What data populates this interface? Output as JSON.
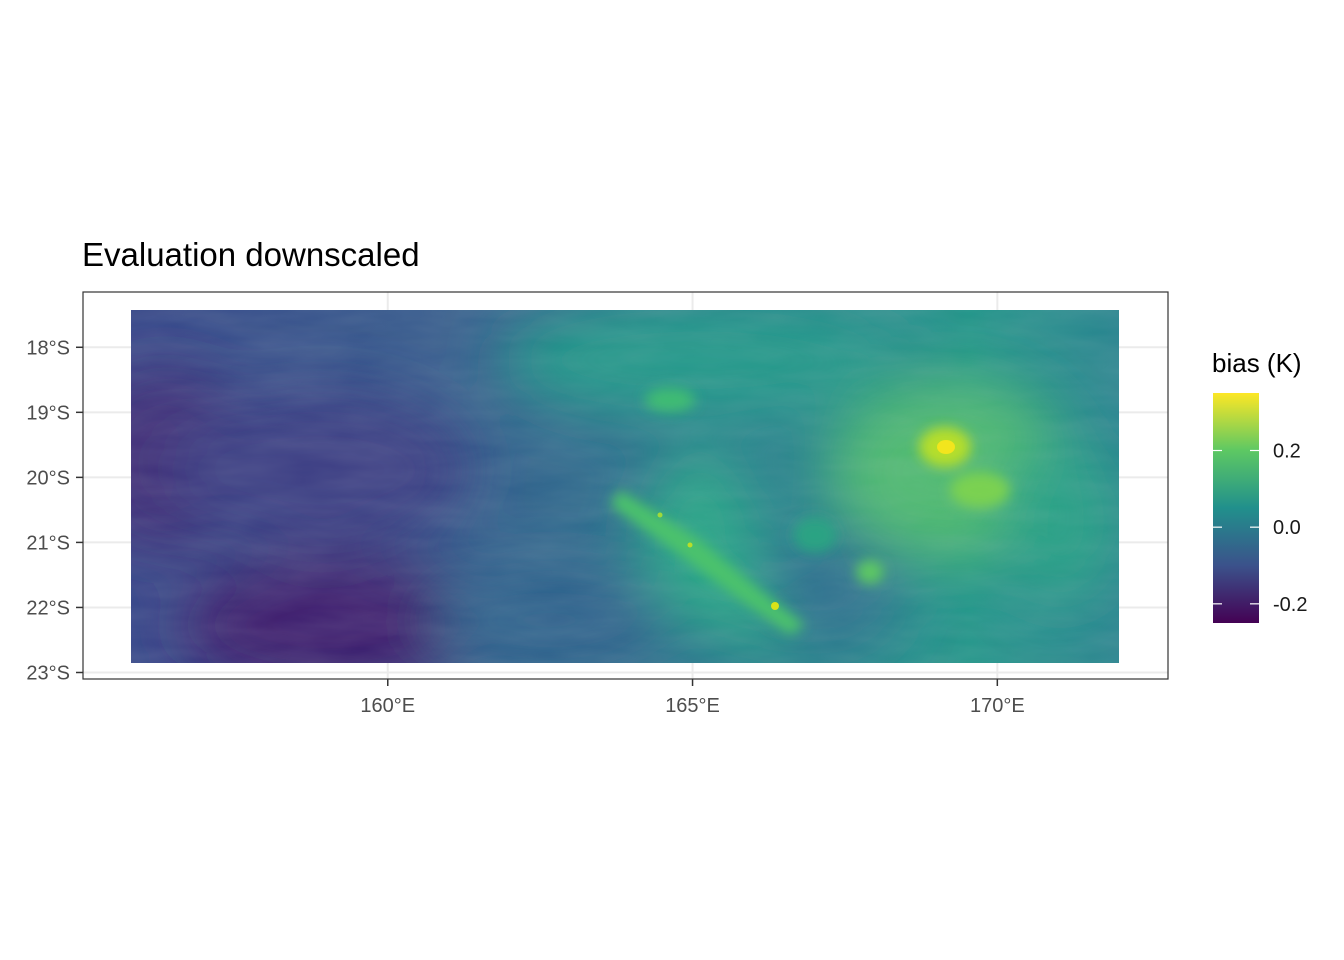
{
  "title": "Evaluation downscaled",
  "legend": {
    "title": "bias (K)",
    "ticks": [
      {
        "value": 0.2,
        "label": "0.2"
      },
      {
        "value": 0.0,
        "label": "0.0"
      },
      {
        "value": -0.2,
        "label": "-0.2"
      }
    ],
    "range": [
      -0.25,
      0.35
    ],
    "palette": [
      "#440154",
      "#3b528b",
      "#21908c",
      "#5dc863",
      "#fde725"
    ]
  },
  "axes": {
    "x_ticks": [
      {
        "value": 160,
        "label": "160°E"
      },
      {
        "value": 165,
        "label": "165°E"
      },
      {
        "value": 170,
        "label": "170°E"
      }
    ],
    "y_ticks": [
      {
        "value": -18,
        "label": "18°S"
      },
      {
        "value": -19,
        "label": "19°S"
      },
      {
        "value": -20,
        "label": "20°S"
      },
      {
        "value": -21,
        "label": "21°S"
      },
      {
        "value": -22,
        "label": "22°S"
      },
      {
        "value": -23,
        "label": "23°S"
      }
    ],
    "x_range": [
      155,
      172.8
    ],
    "y_range": [
      -23.1,
      -17.15
    ],
    "grid": true
  },
  "chart_data": {
    "type": "heatmap",
    "title": "Evaluation downscaled",
    "xlabel": "",
    "ylabel": "",
    "data_extent": {
      "lon": [
        155.8,
        172
      ],
      "lat": [
        -22.85,
        -17.43
      ]
    },
    "colorbar_label": "bias (K)",
    "features": [
      {
        "kind": "hotspot",
        "lon": 169.3,
        "lat": -19.55,
        "value": 0.33
      },
      {
        "kind": "hotspot",
        "lon": 167.9,
        "lat": -21.45,
        "value": 0.18
      },
      {
        "kind": "ridge",
        "lon": 164.4,
        "lat": -20.6,
        "value": 0.15
      },
      {
        "kind": "ridge",
        "lon": 166.4,
        "lat": -22.0,
        "value": 0.2
      },
      {
        "kind": "coldspot",
        "lon": 159.2,
        "lat": -22.4,
        "value": -0.24
      },
      {
        "kind": "coldspot",
        "lon": 156.2,
        "lat": -19.9,
        "value": -0.12
      }
    ]
  }
}
